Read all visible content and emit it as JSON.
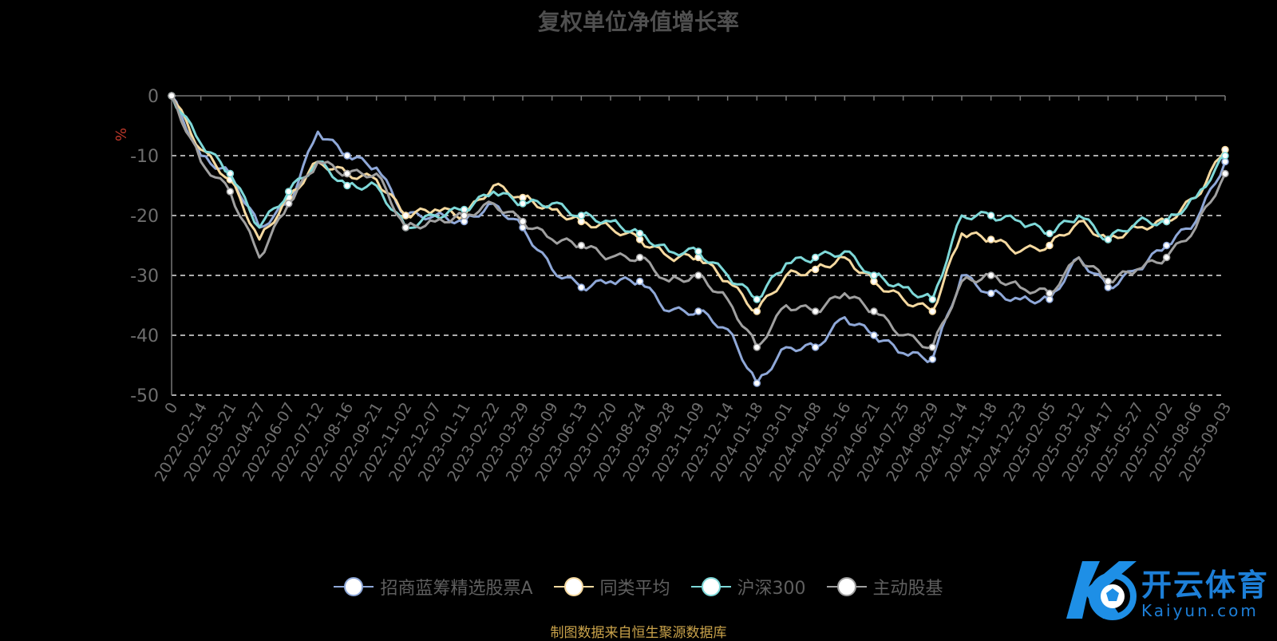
{
  "chart_data": {
    "type": "line",
    "title": "复权单位净值增长率",
    "ylabel": "%",
    "ylim": [
      -50,
      0
    ],
    "yticks": [
      0,
      -10,
      -20,
      -30,
      -40,
      -50
    ],
    "grid": true,
    "legend_position": "bottom",
    "x_tick_labels": [
      "0",
      "2022-02-14",
      "2022-03-21",
      "2022-04-27",
      "2022-06-07",
      "2022-07-12",
      "2022-08-16",
      "2022-09-21",
      "2022-11-02",
      "2022-12-07",
      "2023-01-11",
      "2023-02-22",
      "2023-03-29",
      "2023-05-09",
      "2023-06-13",
      "2023-07-20",
      "2023-08-24",
      "2023-09-28",
      "2023-11-09",
      "2023-12-14",
      "2024-01-18",
      "2024-03-01",
      "2024-04-08",
      "2024-05-16",
      "2024-06-21",
      "2024-07-25",
      "2024-08-29",
      "2024-10-14",
      "2024-11-18",
      "2024-12-23",
      "2025-02-05",
      "2025-03-12",
      "2025-04-17",
      "2025-05-27",
      "2025-07-02",
      "2025-08-06",
      "2025-09-03"
    ],
    "series": [
      {
        "name": "招商蓝筹精选股票A",
        "color": "#8fa8d8",
        "values": [
          0,
          -10,
          -13,
          -22,
          -18,
          -6,
          -10,
          -12,
          -20,
          -20,
          -21,
          -18,
          -22,
          -29,
          -32,
          -31,
          -31,
          -36,
          -36,
          -39,
          -48,
          -42,
          -42,
          -37,
          -40,
          -43,
          -44,
          -30,
          -33,
          -34,
          -34,
          -27,
          -32,
          -29,
          -25,
          -21,
          -11
        ]
      },
      {
        "name": "同类平均",
        "color": "#f5d9a0",
        "values": [
          0,
          -9,
          -14,
          -24,
          -17,
          -11,
          -13,
          -14,
          -20,
          -19,
          -20,
          -15,
          -17,
          -19,
          -21,
          -22,
          -24,
          -27,
          -27,
          -31,
          -36,
          -30,
          -29,
          -27,
          -31,
          -34,
          -36,
          -23,
          -24,
          -26,
          -25,
          -21,
          -24,
          -22,
          -21,
          -17,
          -9
        ]
      },
      {
        "name": "沪深300",
        "color": "#7ed8d8",
        "values": [
          0,
          -8,
          -13,
          -22,
          -16,
          -11,
          -15,
          -15,
          -22,
          -20,
          -19,
          -16,
          -18,
          -18,
          -20,
          -21,
          -23,
          -26,
          -26,
          -30,
          -34,
          -28,
          -27,
          -26,
          -30,
          -32,
          -34,
          -20,
          -20,
          -21,
          -23,
          -20,
          -24,
          -21,
          -21,
          -17,
          -10
        ]
      },
      {
        "name": "主动股基",
        "color": "#a0a0a0",
        "values": [
          0,
          -11,
          -16,
          -27,
          -18,
          -11,
          -13,
          -13,
          -22,
          -21,
          -20,
          -18,
          -21,
          -24,
          -25,
          -27,
          -27,
          -31,
          -30,
          -34,
          -42,
          -35,
          -36,
          -33,
          -36,
          -40,
          -42,
          -31,
          -30,
          -32,
          -33,
          -27,
          -31,
          -29,
          -27,
          -22,
          -13
        ]
      }
    ]
  },
  "source_note": "制图数据来自恒生聚源数据库",
  "logo": {
    "text": "开云体育",
    "sub": "Kaiyun.com"
  }
}
